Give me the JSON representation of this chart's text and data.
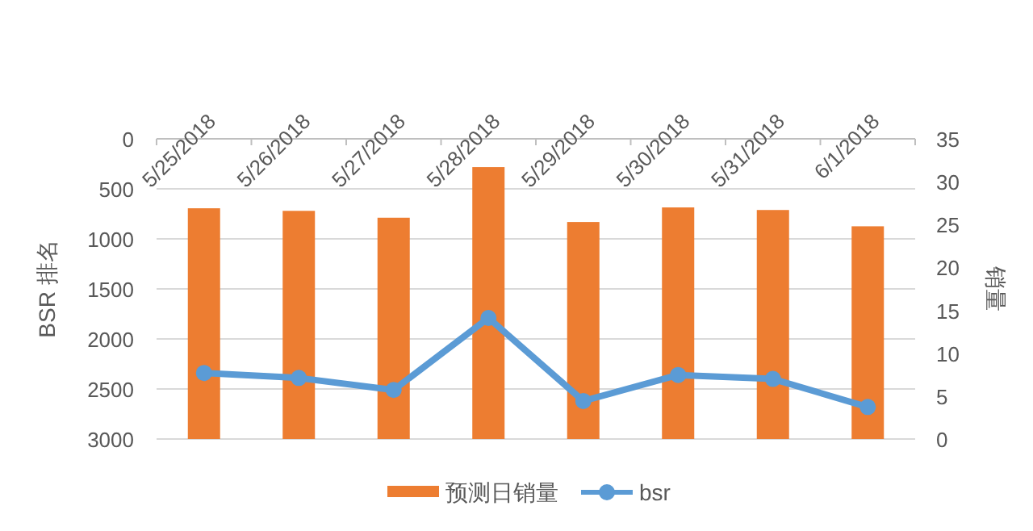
{
  "chart_data": {
    "type": "bar",
    "categories": [
      "5/25/2018",
      "5/26/2018",
      "5/27/2018",
      "5/28/2018",
      "5/29/2018",
      "5/30/2018",
      "5/31/2018",
      "6/1/2018"
    ],
    "series": [
      {
        "name": "预测日销量",
        "color": "#ed7d31",
        "axis": "y2",
        "values": [
          26.9,
          26.6,
          25.8,
          31.7,
          25.3,
          27.0,
          26.7,
          24.8
        ]
      },
      {
        "name": "bsr",
        "type": "line",
        "color": "#5b9bd5",
        "values": [
          2340,
          2390,
          2510,
          1790,
          2620,
          2360,
          2400,
          2680
        ]
      }
    ],
    "ylabel": "BSR 排名",
    "y2label": "销量",
    "ylim": [
      3000,
      0
    ],
    "yticks": [
      0,
      500,
      1000,
      1500,
      2000,
      2500,
      3000
    ],
    "y2lim": [
      0,
      35
    ],
    "y2ticks": [
      0,
      5,
      10,
      15,
      20,
      25,
      30,
      35
    ],
    "grid": "y",
    "legend": "bottom",
    "marker": "circle"
  }
}
